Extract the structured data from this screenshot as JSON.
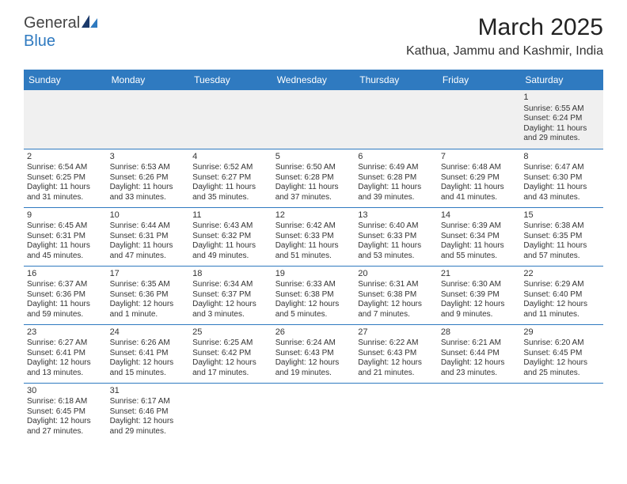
{
  "logo": {
    "part1": "General",
    "part2": "Blue"
  },
  "title": "March 2025",
  "location": "Kathua, Jammu and Kashmir, India",
  "columns": [
    "Sunday",
    "Monday",
    "Tuesday",
    "Wednesday",
    "Thursday",
    "Friday",
    "Saturday"
  ],
  "header_bg": "#2f7ac0",
  "header_fg": "#ffffff",
  "border_color": "#2f7ac0",
  "empty_bg": "#f0f0f0",
  "weeks": [
    [
      null,
      null,
      null,
      null,
      null,
      null,
      {
        "n": "1",
        "sr": "Sunrise: 6:55 AM",
        "ss": "Sunset: 6:24 PM",
        "d1": "Daylight: 11 hours",
        "d2": "and 29 minutes."
      }
    ],
    [
      {
        "n": "2",
        "sr": "Sunrise: 6:54 AM",
        "ss": "Sunset: 6:25 PM",
        "d1": "Daylight: 11 hours",
        "d2": "and 31 minutes."
      },
      {
        "n": "3",
        "sr": "Sunrise: 6:53 AM",
        "ss": "Sunset: 6:26 PM",
        "d1": "Daylight: 11 hours",
        "d2": "and 33 minutes."
      },
      {
        "n": "4",
        "sr": "Sunrise: 6:52 AM",
        "ss": "Sunset: 6:27 PM",
        "d1": "Daylight: 11 hours",
        "d2": "and 35 minutes."
      },
      {
        "n": "5",
        "sr": "Sunrise: 6:50 AM",
        "ss": "Sunset: 6:28 PM",
        "d1": "Daylight: 11 hours",
        "d2": "and 37 minutes."
      },
      {
        "n": "6",
        "sr": "Sunrise: 6:49 AM",
        "ss": "Sunset: 6:28 PM",
        "d1": "Daylight: 11 hours",
        "d2": "and 39 minutes."
      },
      {
        "n": "7",
        "sr": "Sunrise: 6:48 AM",
        "ss": "Sunset: 6:29 PM",
        "d1": "Daylight: 11 hours",
        "d2": "and 41 minutes."
      },
      {
        "n": "8",
        "sr": "Sunrise: 6:47 AM",
        "ss": "Sunset: 6:30 PM",
        "d1": "Daylight: 11 hours",
        "d2": "and 43 minutes."
      }
    ],
    [
      {
        "n": "9",
        "sr": "Sunrise: 6:45 AM",
        "ss": "Sunset: 6:31 PM",
        "d1": "Daylight: 11 hours",
        "d2": "and 45 minutes."
      },
      {
        "n": "10",
        "sr": "Sunrise: 6:44 AM",
        "ss": "Sunset: 6:31 PM",
        "d1": "Daylight: 11 hours",
        "d2": "and 47 minutes."
      },
      {
        "n": "11",
        "sr": "Sunrise: 6:43 AM",
        "ss": "Sunset: 6:32 PM",
        "d1": "Daylight: 11 hours",
        "d2": "and 49 minutes."
      },
      {
        "n": "12",
        "sr": "Sunrise: 6:42 AM",
        "ss": "Sunset: 6:33 PM",
        "d1": "Daylight: 11 hours",
        "d2": "and 51 minutes."
      },
      {
        "n": "13",
        "sr": "Sunrise: 6:40 AM",
        "ss": "Sunset: 6:33 PM",
        "d1": "Daylight: 11 hours",
        "d2": "and 53 minutes."
      },
      {
        "n": "14",
        "sr": "Sunrise: 6:39 AM",
        "ss": "Sunset: 6:34 PM",
        "d1": "Daylight: 11 hours",
        "d2": "and 55 minutes."
      },
      {
        "n": "15",
        "sr": "Sunrise: 6:38 AM",
        "ss": "Sunset: 6:35 PM",
        "d1": "Daylight: 11 hours",
        "d2": "and 57 minutes."
      }
    ],
    [
      {
        "n": "16",
        "sr": "Sunrise: 6:37 AM",
        "ss": "Sunset: 6:36 PM",
        "d1": "Daylight: 11 hours",
        "d2": "and 59 minutes."
      },
      {
        "n": "17",
        "sr": "Sunrise: 6:35 AM",
        "ss": "Sunset: 6:36 PM",
        "d1": "Daylight: 12 hours",
        "d2": "and 1 minute."
      },
      {
        "n": "18",
        "sr": "Sunrise: 6:34 AM",
        "ss": "Sunset: 6:37 PM",
        "d1": "Daylight: 12 hours",
        "d2": "and 3 minutes."
      },
      {
        "n": "19",
        "sr": "Sunrise: 6:33 AM",
        "ss": "Sunset: 6:38 PM",
        "d1": "Daylight: 12 hours",
        "d2": "and 5 minutes."
      },
      {
        "n": "20",
        "sr": "Sunrise: 6:31 AM",
        "ss": "Sunset: 6:38 PM",
        "d1": "Daylight: 12 hours",
        "d2": "and 7 minutes."
      },
      {
        "n": "21",
        "sr": "Sunrise: 6:30 AM",
        "ss": "Sunset: 6:39 PM",
        "d1": "Daylight: 12 hours",
        "d2": "and 9 minutes."
      },
      {
        "n": "22",
        "sr": "Sunrise: 6:29 AM",
        "ss": "Sunset: 6:40 PM",
        "d1": "Daylight: 12 hours",
        "d2": "and 11 minutes."
      }
    ],
    [
      {
        "n": "23",
        "sr": "Sunrise: 6:27 AM",
        "ss": "Sunset: 6:41 PM",
        "d1": "Daylight: 12 hours",
        "d2": "and 13 minutes."
      },
      {
        "n": "24",
        "sr": "Sunrise: 6:26 AM",
        "ss": "Sunset: 6:41 PM",
        "d1": "Daylight: 12 hours",
        "d2": "and 15 minutes."
      },
      {
        "n": "25",
        "sr": "Sunrise: 6:25 AM",
        "ss": "Sunset: 6:42 PM",
        "d1": "Daylight: 12 hours",
        "d2": "and 17 minutes."
      },
      {
        "n": "26",
        "sr": "Sunrise: 6:24 AM",
        "ss": "Sunset: 6:43 PM",
        "d1": "Daylight: 12 hours",
        "d2": "and 19 minutes."
      },
      {
        "n": "27",
        "sr": "Sunrise: 6:22 AM",
        "ss": "Sunset: 6:43 PM",
        "d1": "Daylight: 12 hours",
        "d2": "and 21 minutes."
      },
      {
        "n": "28",
        "sr": "Sunrise: 6:21 AM",
        "ss": "Sunset: 6:44 PM",
        "d1": "Daylight: 12 hours",
        "d2": "and 23 minutes."
      },
      {
        "n": "29",
        "sr": "Sunrise: 6:20 AM",
        "ss": "Sunset: 6:45 PM",
        "d1": "Daylight: 12 hours",
        "d2": "and 25 minutes."
      }
    ],
    [
      {
        "n": "30",
        "sr": "Sunrise: 6:18 AM",
        "ss": "Sunset: 6:45 PM",
        "d1": "Daylight: 12 hours",
        "d2": "and 27 minutes."
      },
      {
        "n": "31",
        "sr": "Sunrise: 6:17 AM",
        "ss": "Sunset: 6:46 PM",
        "d1": "Daylight: 12 hours",
        "d2": "and 29 minutes."
      },
      null,
      null,
      null,
      null,
      null
    ]
  ]
}
